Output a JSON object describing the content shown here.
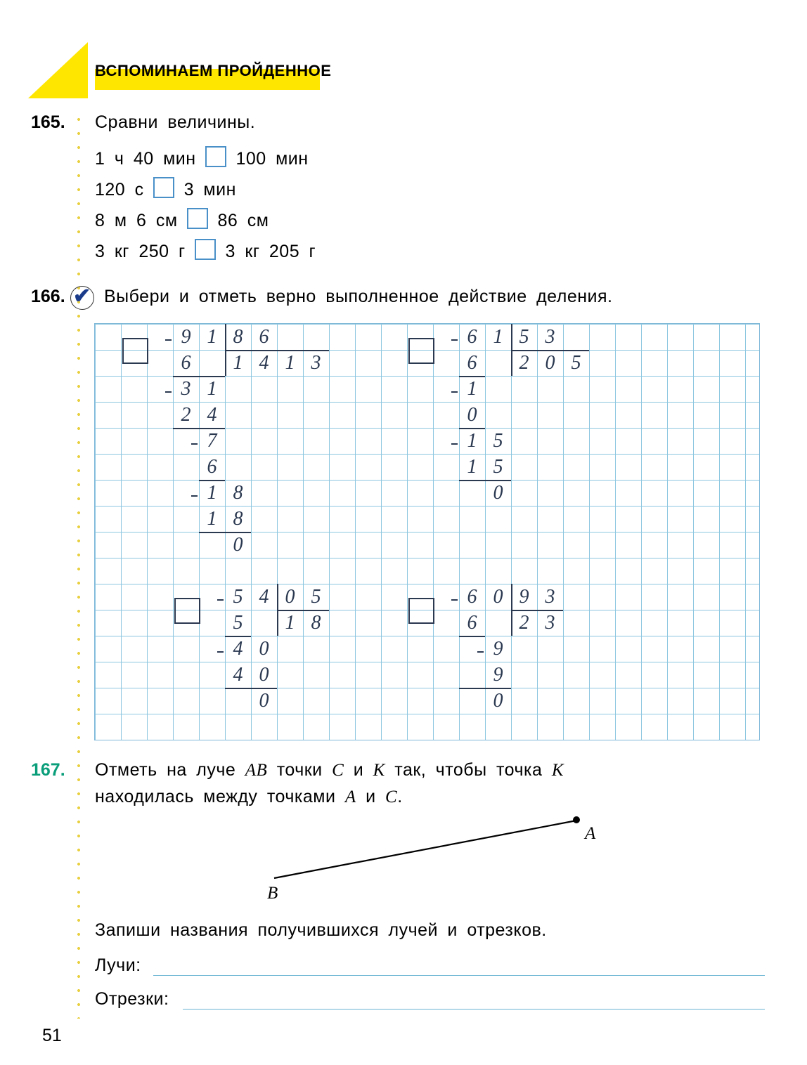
{
  "header": "ВСПОМИНАЕМ ПРОЙДЕННОЕ",
  "ex165": {
    "num": "165.",
    "title": "Сравни  величины.",
    "lines": [
      {
        "left": "1  ч  40  мин",
        "right": "100  мин"
      },
      {
        "left": "120  с",
        "right": "3  мин"
      },
      {
        "left": "8  м  6  см",
        "right": "86  см"
      },
      {
        "left": "3  кг  250  г",
        "right": "3  кг  205  г"
      }
    ]
  },
  "ex166": {
    "num": "166.",
    "title": "Выбери  и  отметь  верно  выполненное  действие  деления."
  },
  "ex167": {
    "num": "167.",
    "text1": "Отметь   на   луче   <i>AB</i>   точки   <i>C</i>   и   <i>K</i>   так,   чтобы   точка   <i>K</i>",
    "text2": "находилась  между  точками  <i>A</i>  и  <i>C</i>.",
    "text3": "Запиши  названия  получившихся  лучей  и  отрезков.",
    "rays_label": "Лучи:",
    "segments_label": "Отрезки:",
    "pointA": "A",
    "pointB": "B"
  },
  "page_number": "51",
  "grid": {
    "cell": 37,
    "div1": {
      "chk_col": 1,
      "chk_row": 0.5,
      "digits": [
        [
          3,
          0,
          "9"
        ],
        [
          4,
          0,
          "1"
        ],
        [
          5,
          0,
          "8"
        ],
        [
          6,
          0,
          "6"
        ],
        [
          3,
          1,
          "6"
        ],
        [
          5,
          1,
          "1"
        ],
        [
          6,
          1,
          "4"
        ],
        [
          7,
          1,
          "1"
        ],
        [
          8,
          1,
          "3"
        ],
        [
          3,
          2,
          "3"
        ],
        [
          4,
          2,
          "1"
        ],
        [
          3,
          3,
          "2"
        ],
        [
          4,
          3,
          "4"
        ],
        [
          4,
          4,
          "7"
        ],
        [
          4,
          5,
          "6"
        ],
        [
          4,
          6,
          "1"
        ],
        [
          5,
          6,
          "8"
        ],
        [
          4,
          7,
          "1"
        ],
        [
          5,
          7,
          "8"
        ],
        [
          5,
          8,
          "0"
        ]
      ],
      "hlines": [
        [
          3,
          2,
          2
        ],
        [
          3,
          4,
          2
        ],
        [
          4,
          6,
          1
        ],
        [
          4,
          8,
          2
        ]
      ],
      "vlines": [
        [
          5,
          1,
          1
        ]
      ],
      "botline": [
        5,
        2,
        4
      ],
      "minus": [
        [
          2.7,
          0.6
        ],
        [
          2.7,
          2.6
        ],
        [
          3.7,
          4.6
        ],
        [
          3.7,
          6.6
        ]
      ]
    },
    "div2": {
      "chk_col": 12,
      "chk_row": 0.5,
      "digits": [
        [
          14,
          0,
          "6"
        ],
        [
          15,
          0,
          "1"
        ],
        [
          16,
          0,
          "5"
        ],
        [
          17,
          0,
          "3"
        ],
        [
          14,
          1,
          "6"
        ],
        [
          16,
          1,
          "2"
        ],
        [
          17,
          1,
          "0"
        ],
        [
          18,
          1,
          "5"
        ],
        [
          14,
          2,
          "1"
        ],
        [
          14,
          3,
          "0"
        ],
        [
          14,
          4,
          "1"
        ],
        [
          15,
          4,
          "5"
        ],
        [
          14,
          5,
          "1"
        ],
        [
          15,
          5,
          "5"
        ],
        [
          15,
          6,
          "0"
        ]
      ],
      "hlines": [
        [
          14,
          2,
          1
        ],
        [
          14,
          4,
          1
        ],
        [
          14,
          6,
          2
        ]
      ],
      "vlines": [
        [
          16,
          1,
          1
        ]
      ],
      "botline": [
        16,
        2,
        3
      ],
      "minus": [
        [
          13.7,
          0.6
        ],
        [
          13.7,
          2.6
        ],
        [
          13.7,
          4.6
        ]
      ]
    },
    "div3": {
      "chk_col": 3,
      "chk_row": 10.5,
      "digits": [
        [
          5,
          10,
          "5"
        ],
        [
          6,
          10,
          "4"
        ],
        [
          7,
          10,
          "0"
        ],
        [
          8,
          10,
          "5"
        ],
        [
          5,
          11,
          "5"
        ],
        [
          7,
          11,
          "1"
        ],
        [
          8,
          11,
          "8"
        ],
        [
          5,
          12,
          "4"
        ],
        [
          6,
          12,
          "0"
        ],
        [
          5,
          13,
          "4"
        ],
        [
          6,
          13,
          "0"
        ],
        [
          6,
          14,
          "0"
        ]
      ],
      "hlines": [
        [
          5,
          12,
          1
        ],
        [
          5,
          14,
          2
        ]
      ],
      "vlines": [
        [
          7,
          11,
          1
        ]
      ],
      "botline": [
        7,
        12,
        2
      ],
      "minus": [
        [
          4.7,
          10.6
        ],
        [
          4.7,
          12.6
        ]
      ]
    },
    "div4": {
      "chk_col": 12,
      "chk_row": 10.5,
      "digits": [
        [
          14,
          10,
          "6"
        ],
        [
          15,
          10,
          "0"
        ],
        [
          16,
          10,
          "9"
        ],
        [
          17,
          10,
          "3"
        ],
        [
          14,
          11,
          "6"
        ],
        [
          16,
          11,
          "2"
        ],
        [
          17,
          11,
          "3"
        ],
        [
          15,
          12,
          "9"
        ],
        [
          15,
          13,
          "9"
        ],
        [
          15,
          14,
          "0"
        ]
      ],
      "hlines": [
        [
          14,
          12,
          1
        ],
        [
          14,
          14,
          2
        ]
      ],
      "vlines": [
        [
          16,
          11,
          1
        ]
      ],
      "botline": [
        16,
        12,
        2
      ],
      "minus": [
        [
          13.7,
          10.6
        ],
        [
          14.7,
          12.6
        ]
      ]
    }
  }
}
